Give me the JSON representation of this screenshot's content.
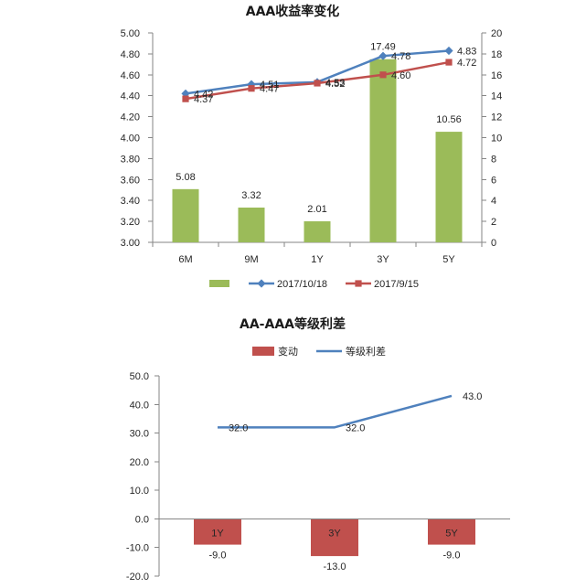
{
  "chart_data": [
    {
      "type": "bar",
      "title": "AAA收益率变化",
      "categories": [
        "6M",
        "9M",
        "1Y",
        "3Y",
        "5Y"
      ],
      "series": [
        {
          "type": "bar",
          "axis": "right",
          "color": "#9BBB59",
          "values": [
            5.08,
            3.32,
            2.01,
            17.49,
            10.56
          ]
        },
        {
          "name": "2017/10/18",
          "type": "line",
          "axis": "left",
          "color": "#4F81BD",
          "marker": "diamond",
          "values": [
            4.42,
            4.51,
            4.53,
            4.78,
            4.83
          ]
        },
        {
          "name": "2017/9/15",
          "type": "line",
          "axis": "left",
          "color": "#C0504D",
          "marker": "square",
          "values": [
            4.37,
            4.47,
            4.52,
            4.6,
            4.72
          ]
        }
      ],
      "y_left": {
        "range": [
          3.0,
          5.0
        ],
        "tick_labels": [
          "3.00",
          "3.20",
          "3.40",
          "3.60",
          "3.80",
          "4.00",
          "4.20",
          "4.40",
          "4.60",
          "4.80",
          "5.00"
        ]
      },
      "y_right": {
        "range": [
          0,
          20
        ],
        "tick_labels": [
          "0",
          "2",
          "4",
          "6",
          "8",
          "10",
          "12",
          "14",
          "16",
          "18",
          "20"
        ]
      },
      "grid": false,
      "legend": "bottom"
    },
    {
      "type": "bar",
      "title": "AA-AAA等级利差",
      "categories": [
        "1Y",
        "3Y",
        "5Y"
      ],
      "series": [
        {
          "name": "变动",
          "type": "bar",
          "color": "#C0504D",
          "values": [
            -9.0,
            -13.0,
            -9.0
          ]
        },
        {
          "name": "等级利差",
          "type": "line",
          "color": "#4F81BD",
          "values": [
            32.0,
            32.0,
            43.0
          ]
        }
      ],
      "y": {
        "range": [
          -20,
          50
        ],
        "tick_labels": [
          "-20.0",
          "-10.0",
          "0.0",
          "10.0",
          "20.0",
          "30.0",
          "40.0",
          "50.0"
        ]
      },
      "grid": false,
      "legend": "top"
    }
  ]
}
